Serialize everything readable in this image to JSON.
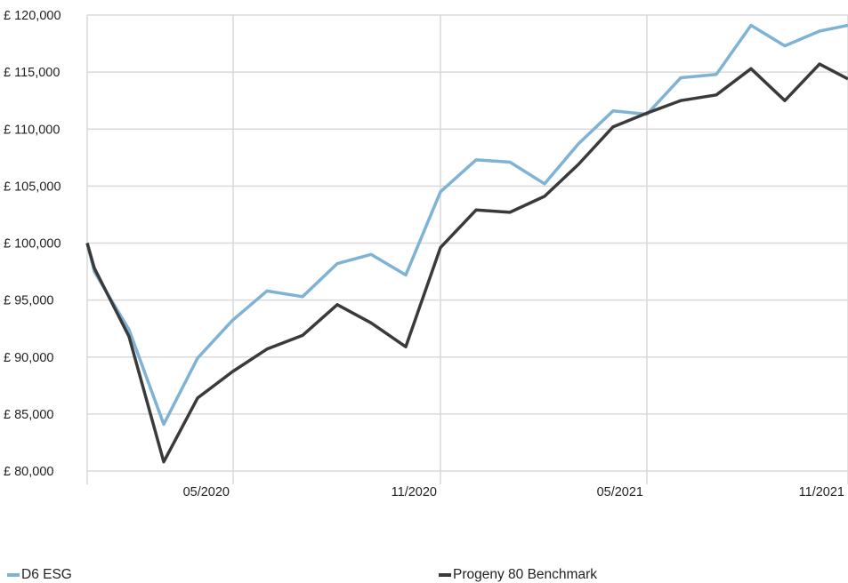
{
  "chart_data": {
    "type": "line",
    "y_ticks": [
      "£ 80,000",
      "£ 85,000",
      "£ 90,000",
      "£ 95,000",
      "£ 100,000",
      "£ 105,000",
      "£ 110,000",
      "£ 115,000",
      "£ 120,000"
    ],
    "y_tick_values": [
      80000,
      85000,
      90000,
      95000,
      100000,
      105000,
      110000,
      115000,
      120000
    ],
    "x_ticks": [
      "05/2020",
      "11/2020",
      "05/2021",
      "11/2021"
    ],
    "ylim": [
      80000,
      120000
    ],
    "grid": true,
    "legend_position": "bottom",
    "x": [
      "02/2020",
      "02/2020",
      "03/2020",
      "04/2020",
      "05/2020",
      "06/2020",
      "07/2020",
      "08/2020",
      "09/2020",
      "10/2020",
      "11/2020",
      "12/2020",
      "01/2021",
      "02/2021",
      "03/2021",
      "04/2021",
      "05/2021",
      "06/2021",
      "07/2021",
      "08/2021",
      "09/2021",
      "10/2021",
      "11/2021",
      "11/2021"
    ],
    "series": [
      {
        "name": "D6 ESG",
        "color": "#7fb3d5",
        "values": [
          100000,
          97500,
          92400,
          84100,
          89900,
          93200,
          95800,
          95300,
          98200,
          99000,
          97200,
          104500,
          107300,
          107100,
          105200,
          108700,
          111600,
          111300,
          114500,
          114800,
          119100,
          117300,
          118600,
          119100
        ]
      },
      {
        "name": "Progeny 80 Benchmark",
        "color": "#3a3a3a",
        "values": [
          100000,
          97800,
          91800,
          80800,
          86400,
          88700,
          90700,
          91900,
          94600,
          93000,
          90900,
          99600,
          102900,
          102700,
          104100,
          106900,
          110200,
          111400,
          112500,
          113000,
          115300,
          112500,
          115700,
          114400
        ]
      }
    ]
  }
}
